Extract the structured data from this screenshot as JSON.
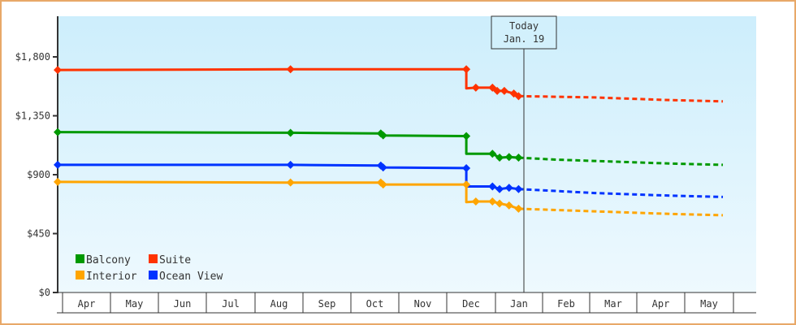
{
  "chart_data": {
    "type": "line",
    "title": "",
    "xlabel": "",
    "ylabel": "",
    "ylim": [
      0,
      2200
    ],
    "y_ticks": [
      {
        "value": 0,
        "label": "$0"
      },
      {
        "value": 450,
        "label": "$450"
      },
      {
        "value": 900,
        "label": "$900"
      },
      {
        "value": 1350,
        "label": "$1,350"
      },
      {
        "value": 1800,
        "label": "$1,800"
      }
    ],
    "x_months": [
      "Apr",
      "May",
      "Jun",
      "Jul",
      "Aug",
      "Sep",
      "Oct",
      "Nov",
      "Dec",
      "Jan",
      "Feb",
      "Mar",
      "Apr",
      "May"
    ],
    "today_marker": {
      "line1": "Today",
      "line2": "Jan. 19"
    },
    "legend": [
      {
        "name": "Balcony",
        "color": "#009900"
      },
      {
        "name": "Suite",
        "color": "#ff3300"
      },
      {
        "name": "Interior",
        "color": "#ffa500"
      },
      {
        "name": "Ocean View",
        "color": "#0033ff"
      }
    ],
    "series": [
      {
        "name": "Suite",
        "color": "#ff3300",
        "history": [
          [
            0,
            1700
          ],
          [
            4.9,
            1705
          ],
          [
            8.6,
            1705
          ],
          [
            8.6,
            1560
          ],
          [
            8.8,
            1565
          ],
          [
            9.15,
            1565
          ],
          [
            9.25,
            1540
          ],
          [
            9.4,
            1540
          ],
          [
            9.6,
            1520
          ],
          [
            9.7,
            1500
          ]
        ],
        "forecast": [
          [
            9.7,
            1500
          ],
          [
            10.5,
            1495
          ],
          [
            11.3,
            1490
          ],
          [
            12.1,
            1480
          ],
          [
            12.9,
            1470
          ],
          [
            14.0,
            1460
          ]
        ]
      },
      {
        "name": "Balcony",
        "color": "#009900",
        "history": [
          [
            0,
            1225
          ],
          [
            4.9,
            1220
          ],
          [
            6.8,
            1215
          ],
          [
            6.85,
            1200
          ],
          [
            8.6,
            1195
          ],
          [
            8.6,
            1060
          ],
          [
            9.15,
            1060
          ],
          [
            9.3,
            1030
          ],
          [
            9.5,
            1035
          ],
          [
            9.7,
            1030
          ]
        ],
        "forecast": [
          [
            9.7,
            1030
          ],
          [
            10.5,
            1015
          ],
          [
            11.3,
            1005
          ],
          [
            12.1,
            995
          ],
          [
            12.9,
            985
          ],
          [
            14.0,
            975
          ]
        ]
      },
      {
        "name": "Ocean View",
        "color": "#0033ff",
        "history": [
          [
            0,
            975
          ],
          [
            4.9,
            975
          ],
          [
            6.8,
            970
          ],
          [
            6.85,
            955
          ],
          [
            8.6,
            950
          ],
          [
            8.6,
            810
          ],
          [
            9.15,
            810
          ],
          [
            9.3,
            790
          ],
          [
            9.5,
            800
          ],
          [
            9.7,
            790
          ]
        ],
        "forecast": [
          [
            9.7,
            790
          ],
          [
            10.5,
            775
          ],
          [
            11.3,
            760
          ],
          [
            12.1,
            750
          ],
          [
            12.9,
            740
          ],
          [
            14.0,
            730
          ]
        ]
      },
      {
        "name": "Interior",
        "color": "#ffa500",
        "history": [
          [
            0,
            845
          ],
          [
            4.9,
            840
          ],
          [
            6.8,
            840
          ],
          [
            6.85,
            825
          ],
          [
            8.6,
            825
          ],
          [
            8.6,
            690
          ],
          [
            8.8,
            695
          ],
          [
            9.15,
            695
          ],
          [
            9.3,
            680
          ],
          [
            9.5,
            665
          ],
          [
            9.7,
            640
          ]
        ],
        "forecast": [
          [
            9.7,
            640
          ],
          [
            10.5,
            630
          ],
          [
            11.3,
            620
          ],
          [
            12.1,
            610
          ],
          [
            12.9,
            600
          ],
          [
            14.0,
            590
          ]
        ]
      }
    ]
  }
}
